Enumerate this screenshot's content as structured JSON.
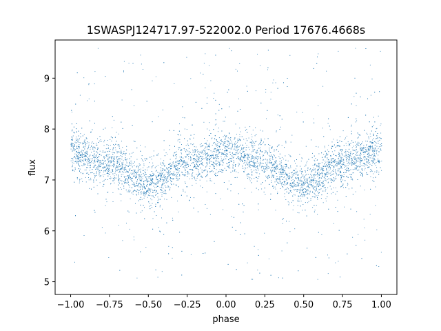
{
  "chart_data": {
    "type": "scatter",
    "title": "1SWASPJ124717.97-522002.0 Period 17676.4668s",
    "xlabel": "phase",
    "ylabel": "flux",
    "xlim": [
      -1.1,
      1.1
    ],
    "ylim": [
      4.75,
      9.75
    ],
    "xticks": [
      -1.0,
      -0.75,
      -0.5,
      -0.25,
      0.0,
      0.25,
      0.5,
      0.75,
      1.0
    ],
    "xtick_labels": [
      "−1.00",
      "−0.75",
      "−0.50",
      "−0.25",
      "0.00",
      "0.25",
      "0.50",
      "0.75",
      "1.00"
    ],
    "yticks": [
      5,
      6,
      7,
      8,
      9
    ],
    "ytick_labels": [
      "5",
      "6",
      "7",
      "8",
      "9"
    ],
    "grid": false,
    "point_color": "#1f77b4",
    "series": [
      {
        "phase_range": [
          -1.0,
          1.0
        ],
        "mean_flux_curve": {
          "x": [
            -1.0,
            -0.75,
            -0.5,
            -0.25,
            0.0,
            0.25,
            0.5,
            0.75,
            1.0
          ],
          "y": [
            7.55,
            7.35,
            6.9,
            7.35,
            7.55,
            7.35,
            6.9,
            7.35,
            7.55
          ]
        },
        "scatter_sigma": 0.2,
        "outlier_range": [
          5.0,
          9.6
        ]
      }
    ]
  }
}
